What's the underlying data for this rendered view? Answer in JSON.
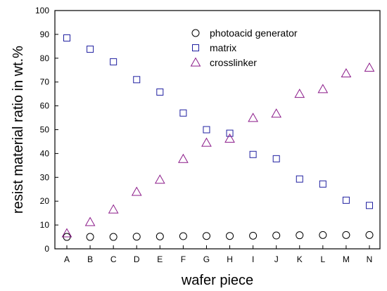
{
  "chart_data": {
    "type": "scatter",
    "categories": [
      "A",
      "B",
      "C",
      "D",
      "E",
      "F",
      "G",
      "H",
      "I",
      "J",
      "K",
      "L",
      "M",
      "N"
    ],
    "xlabel": "wafer piece",
    "ylabel": "resist material ratio in wt.%",
    "ylim": [
      0,
      100
    ],
    "yticks": [
      0,
      10,
      20,
      30,
      40,
      50,
      60,
      70,
      80,
      90,
      100
    ],
    "grid": false,
    "legend_position": "top-right",
    "series": [
      {
        "name": "photoacid generator",
        "marker": "circle",
        "color": "#000000",
        "values": [
          5.0,
          5.0,
          5.0,
          5.1,
          5.2,
          5.3,
          5.4,
          5.4,
          5.5,
          5.6,
          5.7,
          5.8,
          5.8,
          5.8
        ]
      },
      {
        "name": "matrix",
        "marker": "square",
        "color": "#1f1fa0",
        "values": [
          88.5,
          83.8,
          78.5,
          71.0,
          65.8,
          57.0,
          50.0,
          48.5,
          39.6,
          37.8,
          29.3,
          27.2,
          20.4,
          18.2
        ]
      },
      {
        "name": "crosslinker",
        "marker": "triangle",
        "color": "#8b1a89",
        "values": [
          6.5,
          11.2,
          16.5,
          23.9,
          29.0,
          37.7,
          44.5,
          46.2,
          54.9,
          56.7,
          65.0,
          67.0,
          73.6,
          76.0
        ]
      }
    ]
  }
}
